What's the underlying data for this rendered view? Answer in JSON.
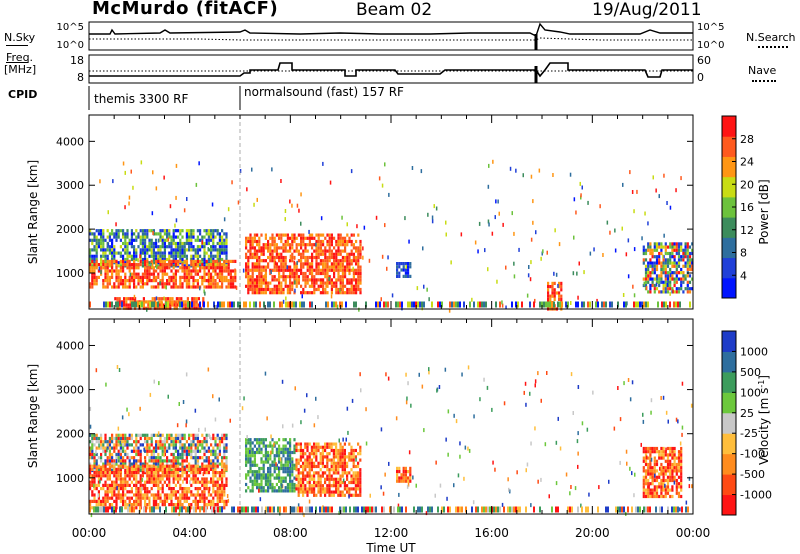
{
  "header": {
    "station": "McMurdo (fitACF)",
    "beam": "Beam 02",
    "date": "19/Aug/2011"
  },
  "noise_panel": {
    "left_label": "N.Sky",
    "right_label": "N.Search",
    "y_ticks": [
      "10^5",
      "10^0"
    ]
  },
  "freq_panel": {
    "left_label_1": "Freq.",
    "left_label_2": "[MHz]",
    "left_ticks": [
      "18",
      "8"
    ],
    "right_label": "Nave",
    "right_ticks": [
      "60",
      "0"
    ]
  },
  "cpid": {
    "label": "CPID",
    "modes": [
      "themis 3300 RF",
      "normalsound (fast) 157 RF"
    ]
  },
  "colors": {
    "power_scale": [
      "#0014ff",
      "#2040d8",
      "#2e6e9e",
      "#3c8c5c",
      "#6cc23c",
      "#c8dc14",
      "#ff9614",
      "#ff5a1e",
      "#ff1414"
    ],
    "velocity_scale": [
      "#ff1414",
      "#ff4a14",
      "#ff8c1e",
      "#ffbe3c",
      "#c8c8c8",
      "#6cc83c",
      "#3c9c5c",
      "#2e6e9e",
      "#1e3cc8"
    ]
  },
  "chart_data": [
    {
      "type": "heatmap",
      "title": "Power",
      "colorbar_label": "Power [dB]",
      "colorbar_ticks": [
        "28",
        "24",
        "20",
        "16",
        "12",
        "8",
        "4"
      ],
      "ylabel": "Slant Range [km]",
      "y_ticks": [
        "4000",
        "3000",
        "2000",
        "1000"
      ],
      "ylim": [
        180,
        4600
      ],
      "xlim": [
        "00:00",
        "24:00"
      ],
      "x_ticks": [
        "00:00",
        "04:00",
        "08:00",
        "12:00",
        "16:00",
        "20:00",
        "00:00"
      ],
      "regions": [
        {
          "t": [
            0.0,
            5.5
          ],
          "r": [
            1150,
            2000
          ],
          "level": "mixed low-mid"
        },
        {
          "t": [
            0.0,
            5.8
          ],
          "r": [
            700,
            1300
          ],
          "level": "high"
        },
        {
          "t": [
            1.0,
            4.5
          ],
          "r": [
            200,
            450
          ],
          "level": "high"
        },
        {
          "t": [
            6.2,
            10.8
          ],
          "r": [
            550,
            1900
          ],
          "level": "high"
        },
        {
          "t": [
            12.2,
            12.8
          ],
          "r": [
            950,
            1250
          ],
          "level": "low"
        },
        {
          "t": [
            18.2,
            18.8
          ],
          "r": [
            200,
            800
          ],
          "level": "high"
        },
        {
          "t": [
            22.0,
            24.0
          ],
          "r": [
            600,
            1700
          ],
          "level": "mixed"
        }
      ]
    },
    {
      "type": "heatmap",
      "title": "Velocity",
      "colorbar_label": "Velocity [m s^-1]",
      "colorbar_ticks": [
        "1000",
        "500",
        "100",
        "25",
        "-25",
        "-100",
        "-500",
        "-1000"
      ],
      "ylabel": "Slant Range [km]",
      "y_ticks": [
        "4000",
        "3000",
        "2000",
        "1000"
      ],
      "ylim": [
        180,
        4600
      ],
      "xlim": [
        "00:00",
        "24:00"
      ],
      "x_ticks": [
        "00:00",
        "04:00",
        "08:00",
        "12:00",
        "16:00",
        "20:00",
        "00:00"
      ],
      "xlabel": "Time UT",
      "regions": [
        {
          "t": [
            0.0,
            5.5
          ],
          "r": [
            1200,
            2000
          ],
          "level": "mixed"
        },
        {
          "t": [
            0.0,
            5.5
          ],
          "r": [
            300,
            1300
          ],
          "level": "negative"
        },
        {
          "t": [
            6.2,
            8.2
          ],
          "r": [
            700,
            1900
          ],
          "level": "positive"
        },
        {
          "t": [
            8.2,
            10.8
          ],
          "r": [
            600,
            1800
          ],
          "level": "negative"
        },
        {
          "t": [
            12.2,
            12.8
          ],
          "r": [
            950,
            1250
          ],
          "level": "negative"
        },
        {
          "t": [
            22.0,
            23.5
          ],
          "r": [
            600,
            1700
          ],
          "level": "negative"
        }
      ]
    }
  ],
  "power_cb": {
    "label": "Power [dB]",
    "ticks": [
      "28",
      "24",
      "20",
      "16",
      "12",
      "8",
      "4"
    ]
  },
  "velocity_cb": {
    "label": "Velocity [m s",
    "label_sup": "-1",
    "label_end": "]",
    "ticks": [
      "1000",
      "500",
      "100",
      "25",
      "-25",
      "-100",
      "-500",
      "-1000"
    ]
  },
  "axes": {
    "ylabel": "Slant Range [km]",
    "y_ticks": [
      "4000",
      "3000",
      "2000",
      "1000"
    ],
    "x_ticks": [
      "00:00",
      "04:00",
      "08:00",
      "12:00",
      "16:00",
      "20:00",
      "00:00"
    ],
    "xlabel": "Time UT"
  }
}
